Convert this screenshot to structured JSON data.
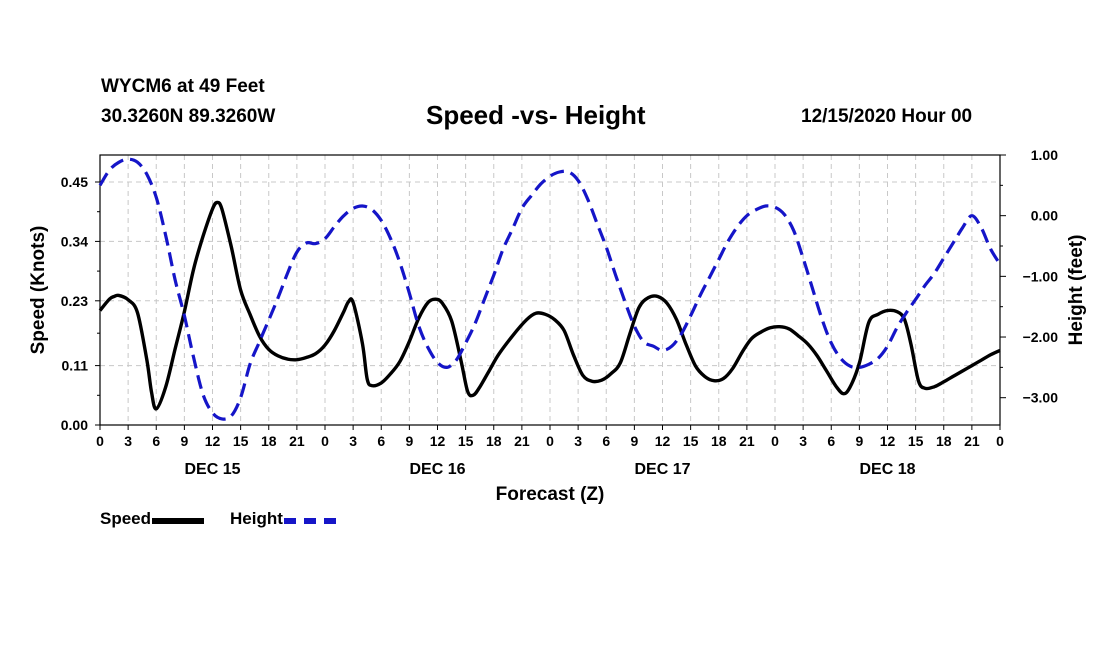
{
  "header": {
    "station": "WYCM6 at 49 Feet",
    "coords": "30.3260N 89.3260W",
    "title": "Speed -vs- Height",
    "date_info": "12/15/2020 Hour 00"
  },
  "legend": {
    "speed_label": "Speed",
    "height_label": "Height"
  },
  "chart_data": {
    "type": "line",
    "title": "Speed -vs- Height",
    "xlabel": "Forecast (Z)",
    "ylabel_left": "Speed (Knots)",
    "ylabel_right": "Height (feet)",
    "x_range_hours": [
      0,
      96
    ],
    "x_tick_step_hours": 3,
    "x_tick_labels": [
      "0",
      "3",
      "6",
      "9",
      "12",
      "15",
      "18",
      "21",
      "0",
      "3",
      "6",
      "9",
      "12",
      "15",
      "18",
      "21",
      "0",
      "3",
      "6",
      "9",
      "12",
      "15",
      "18",
      "21",
      "0",
      "3",
      "6",
      "9",
      "12",
      "15",
      "18",
      "21",
      "0"
    ],
    "day_labels": [
      {
        "label": "DEC 15",
        "hour": 12
      },
      {
        "label": "DEC 16",
        "hour": 36
      },
      {
        "label": "DEC 17",
        "hour": 60
      },
      {
        "label": "DEC 18",
        "hour": 84
      }
    ],
    "y_left_range": [
      0,
      0.5
    ],
    "y_left_ticks": [
      0.0,
      0.11,
      0.23,
      0.34,
      0.45
    ],
    "y_left_tick_labels": [
      "0.00",
      "0.11",
      "0.23",
      "0.34",
      "0.45"
    ],
    "y_right_range": [
      -3.45,
      1.0
    ],
    "y_right_ticks": [
      1.0,
      0.0,
      -1.0,
      -2.0,
      -3.0
    ],
    "y_right_tick_labels": [
      "1.00",
      "0.00",
      "−1.00",
      "−2.00",
      "−3.00"
    ],
    "grid": true,
    "series": [
      {
        "name": "Speed",
        "axis": "left",
        "color": "#000000",
        "dash": false,
        "points": [
          [
            0,
            0.212
          ],
          [
            1,
            0.233
          ],
          [
            1.5,
            0.238
          ],
          [
            2,
            0.24
          ],
          [
            3,
            0.232
          ],
          [
            4,
            0.208
          ],
          [
            5,
            0.12
          ],
          [
            5.5,
            0.06
          ],
          [
            6,
            0.03
          ],
          [
            7,
            0.07
          ],
          [
            8,
            0.14
          ],
          [
            9,
            0.21
          ],
          [
            10,
            0.29
          ],
          [
            11,
            0.35
          ],
          [
            12,
            0.4
          ],
          [
            12.5,
            0.412
          ],
          [
            13,
            0.4
          ],
          [
            14,
            0.33
          ],
          [
            15,
            0.25
          ],
          [
            16,
            0.205
          ],
          [
            17,
            0.165
          ],
          [
            18,
            0.14
          ],
          [
            19,
            0.128
          ],
          [
            20,
            0.122
          ],
          [
            21,
            0.121
          ],
          [
            22,
            0.125
          ],
          [
            23,
            0.132
          ],
          [
            24,
            0.148
          ],
          [
            25,
            0.175
          ],
          [
            26,
            0.21
          ],
          [
            26.5,
            0.228
          ],
          [
            27,
            0.227
          ],
          [
            28,
            0.15
          ],
          [
            28.5,
            0.085
          ],
          [
            29,
            0.073
          ],
          [
            30,
            0.078
          ],
          [
            31,
            0.095
          ],
          [
            32,
            0.118
          ],
          [
            33,
            0.155
          ],
          [
            34,
            0.198
          ],
          [
            35,
            0.227
          ],
          [
            35.8,
            0.233
          ],
          [
            36.5,
            0.226
          ],
          [
            37.5,
            0.193
          ],
          [
            38.5,
            0.12
          ],
          [
            39.2,
            0.063
          ],
          [
            39.8,
            0.055
          ],
          [
            40.5,
            0.07
          ],
          [
            41.5,
            0.1
          ],
          [
            42.5,
            0.13
          ],
          [
            44,
            0.165
          ],
          [
            45.5,
            0.195
          ],
          [
            46.5,
            0.207
          ],
          [
            47.5,
            0.205
          ],
          [
            48.5,
            0.195
          ],
          [
            49.5,
            0.175
          ],
          [
            50.5,
            0.13
          ],
          [
            51.5,
            0.092
          ],
          [
            52.5,
            0.081
          ],
          [
            53.5,
            0.083
          ],
          [
            54.5,
            0.095
          ],
          [
            55.5,
            0.115
          ],
          [
            56.5,
            0.168
          ],
          [
            57.5,
            0.218
          ],
          [
            58.5,
            0.236
          ],
          [
            59.5,
            0.238
          ],
          [
            60.5,
            0.225
          ],
          [
            61.5,
            0.195
          ],
          [
            62.5,
            0.15
          ],
          [
            63.5,
            0.11
          ],
          [
            64.5,
            0.09
          ],
          [
            65.5,
            0.082
          ],
          [
            66.5,
            0.086
          ],
          [
            67.5,
            0.105
          ],
          [
            68.5,
            0.135
          ],
          [
            69.5,
            0.16
          ],
          [
            70.5,
            0.172
          ],
          [
            71.5,
            0.18
          ],
          [
            72.5,
            0.182
          ],
          [
            73.5,
            0.178
          ],
          [
            74.5,
            0.165
          ],
          [
            75.5,
            0.15
          ],
          [
            76.5,
            0.128
          ],
          [
            77.5,
            0.1
          ],
          [
            78.5,
            0.072
          ],
          [
            79.3,
            0.058
          ],
          [
            80,
            0.07
          ],
          [
            81,
            0.115
          ],
          [
            82,
            0.19
          ],
          [
            83,
            0.205
          ],
          [
            84,
            0.212
          ],
          [
            85,
            0.21
          ],
          [
            85.8,
            0.196
          ],
          [
            86.5,
            0.15
          ],
          [
            87.3,
            0.082
          ],
          [
            88,
            0.068
          ],
          [
            89,
            0.071
          ],
          [
            90,
            0.08
          ],
          [
            91,
            0.09
          ],
          [
            92,
            0.1
          ],
          [
            93,
            0.11
          ],
          [
            94,
            0.12
          ],
          [
            95,
            0.13
          ],
          [
            96,
            0.138
          ]
        ]
      },
      {
        "name": "Height",
        "axis": "right",
        "color": "#1515c8",
        "dash": true,
        "points": [
          [
            0,
            0.5
          ],
          [
            1,
            0.75
          ],
          [
            2,
            0.88
          ],
          [
            3,
            0.93
          ],
          [
            4,
            0.88
          ],
          [
            5,
            0.68
          ],
          [
            6,
            0.3
          ],
          [
            7,
            -0.32
          ],
          [
            8,
            -1.05
          ],
          [
            9,
            -1.65
          ],
          [
            10,
            -2.35
          ],
          [
            11,
            -2.95
          ],
          [
            12,
            -3.25
          ],
          [
            13,
            -3.35
          ],
          [
            14,
            -3.3
          ],
          [
            15,
            -3.0
          ],
          [
            16,
            -2.45
          ],
          [
            17,
            -2.08
          ],
          [
            18,
            -1.72
          ],
          [
            19,
            -1.35
          ],
          [
            20,
            -0.95
          ],
          [
            21,
            -0.6
          ],
          [
            22,
            -0.45
          ],
          [
            23,
            -0.46
          ],
          [
            24,
            -0.38
          ],
          [
            25,
            -0.18
          ],
          [
            26,
            0.0
          ],
          [
            27,
            0.12
          ],
          [
            28,
            0.16
          ],
          [
            29,
            0.1
          ],
          [
            30,
            -0.08
          ],
          [
            31,
            -0.38
          ],
          [
            32,
            -0.78
          ],
          [
            33,
            -1.28
          ],
          [
            34,
            -1.82
          ],
          [
            35,
            -2.18
          ],
          [
            36,
            -2.42
          ],
          [
            37,
            -2.5
          ],
          [
            38,
            -2.38
          ],
          [
            39,
            -2.1
          ],
          [
            40,
            -1.78
          ],
          [
            41,
            -1.38
          ],
          [
            42,
            -0.98
          ],
          [
            43,
            -0.55
          ],
          [
            44,
            -0.22
          ],
          [
            45,
            0.12
          ],
          [
            46,
            0.33
          ],
          [
            47,
            0.52
          ],
          [
            48,
            0.65
          ],
          [
            49,
            0.72
          ],
          [
            50,
            0.72
          ],
          [
            51,
            0.58
          ],
          [
            52,
            0.28
          ],
          [
            53,
            -0.12
          ],
          [
            54,
            -0.52
          ],
          [
            55,
            -0.98
          ],
          [
            56,
            -1.42
          ],
          [
            57,
            -1.82
          ],
          [
            58,
            -2.08
          ],
          [
            59,
            -2.15
          ],
          [
            60,
            -2.22
          ],
          [
            61,
            -2.15
          ],
          [
            62,
            -1.95
          ],
          [
            63,
            -1.65
          ],
          [
            64,
            -1.32
          ],
          [
            65,
            -1.02
          ],
          [
            66,
            -0.72
          ],
          [
            67,
            -0.42
          ],
          [
            68,
            -0.18
          ],
          [
            69,
            0.0
          ],
          [
            70,
            0.1
          ],
          [
            71,
            0.16
          ],
          [
            72,
            0.14
          ],
          [
            73,
            0.02
          ],
          [
            74,
            -0.25
          ],
          [
            75,
            -0.7
          ],
          [
            76,
            -1.2
          ],
          [
            77,
            -1.7
          ],
          [
            78,
            -2.1
          ],
          [
            79,
            -2.35
          ],
          [
            80,
            -2.48
          ],
          [
            81,
            -2.5
          ],
          [
            82,
            -2.45
          ],
          [
            83,
            -2.35
          ],
          [
            84,
            -2.15
          ],
          [
            85,
            -1.85
          ],
          [
            86,
            -1.6
          ],
          [
            87,
            -1.38
          ],
          [
            88,
            -1.15
          ],
          [
            89,
            -0.95
          ],
          [
            90,
            -0.7
          ],
          [
            91,
            -0.45
          ],
          [
            92,
            -0.2
          ],
          [
            93,
            0.0
          ],
          [
            94,
            -0.2
          ],
          [
            95,
            -0.55
          ],
          [
            96,
            -0.8
          ]
        ]
      }
    ]
  }
}
